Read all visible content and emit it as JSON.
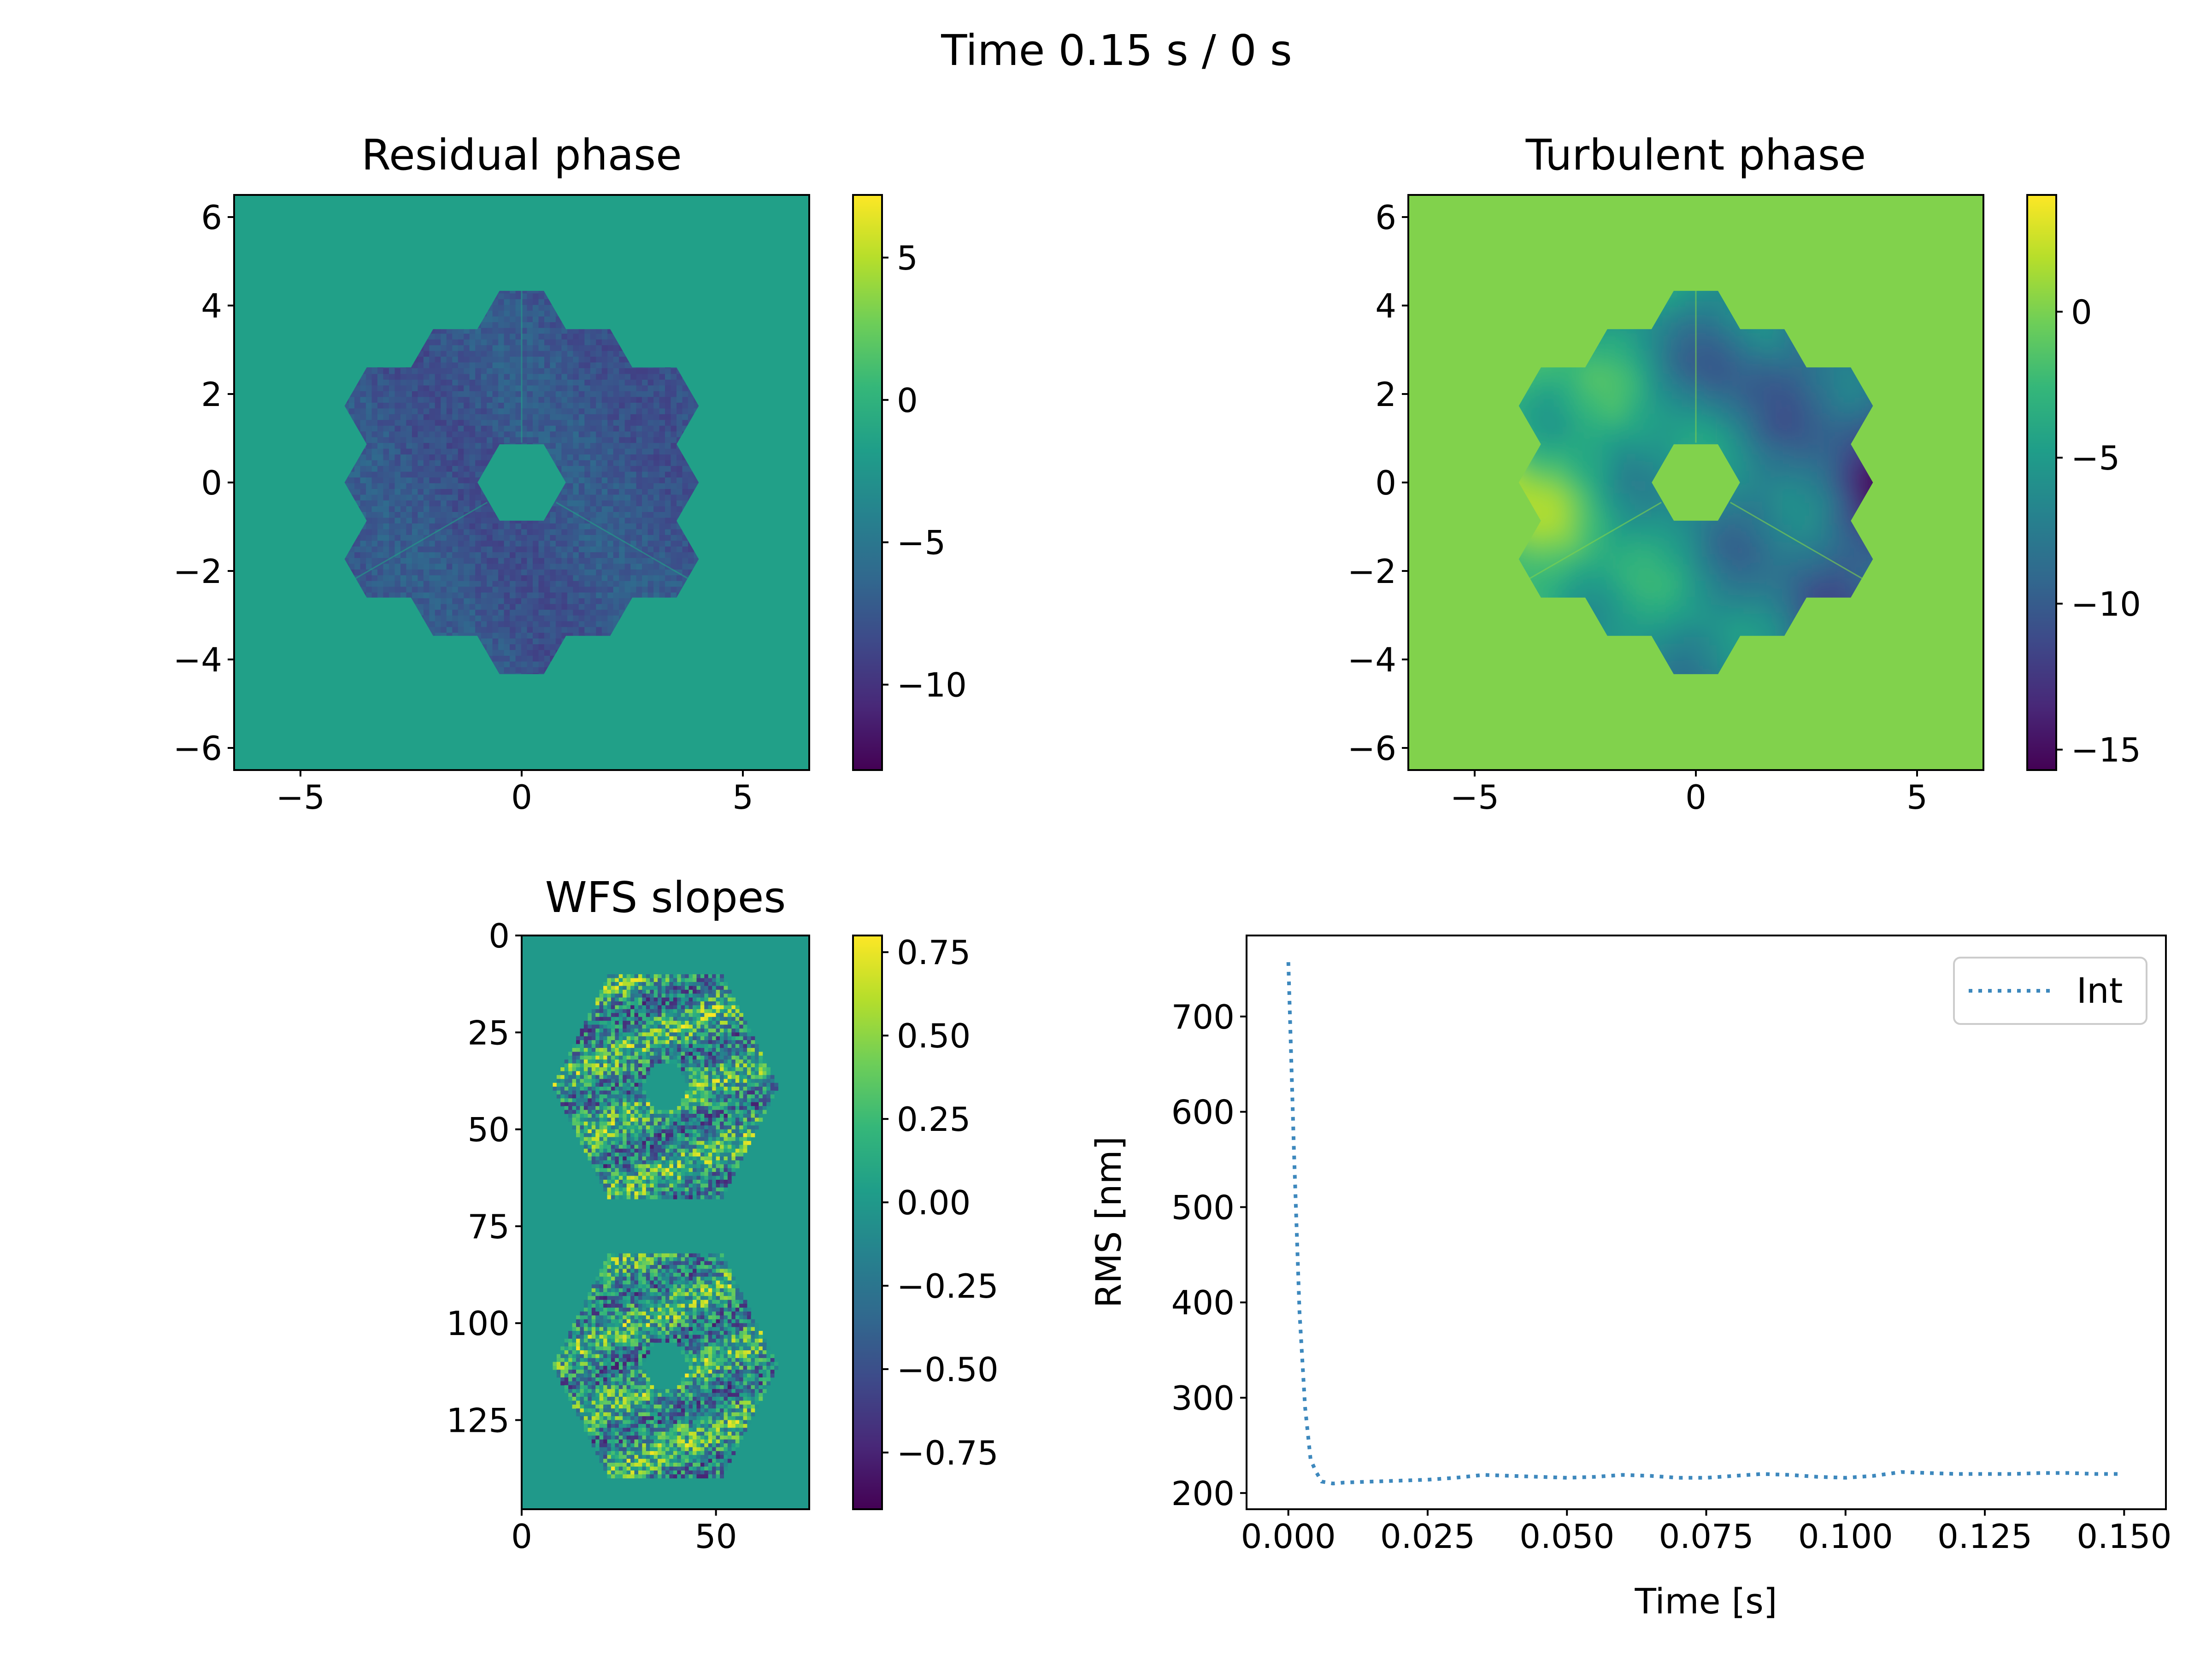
{
  "figure": {
    "title": "Time 0.15 s / 0 s"
  },
  "chart_data": [
    {
      "type": "heatmap",
      "title": "Residual phase",
      "xlim": [
        -6.5,
        6.5
      ],
      "ylim": [
        -6.5,
        6.5
      ],
      "xticks": [
        -5,
        0,
        5
      ],
      "xtick_labels": [
        "−5",
        "0",
        "5"
      ],
      "yticks": [
        6,
        4,
        2,
        0,
        -2,
        -4,
        -6
      ],
      "ytick_labels": [
        "6",
        "4",
        "2",
        "0",
        "−2",
        "−4",
        "−6"
      ],
      "colormap": "viridis",
      "background_value": -1.6,
      "pupil_mean_value": -7.6,
      "colorbar": {
        "range": [
          -13,
          7.2
        ],
        "ticks": [
          5,
          0,
          -5,
          -10
        ],
        "tick_labels": [
          "5",
          "0",
          "−5",
          "−10"
        ]
      }
    },
    {
      "type": "heatmap",
      "title": "Turbulent phase",
      "xlim": [
        -6.5,
        6.5
      ],
      "ylim": [
        -6.5,
        6.5
      ],
      "xticks": [
        -5,
        0,
        5
      ],
      "xtick_labels": [
        "−5",
        "0",
        "5"
      ],
      "yticks": [
        6,
        4,
        2,
        0,
        -2,
        -4,
        -6
      ],
      "ytick_labels": [
        "6",
        "4",
        "2",
        "0",
        "−2",
        "−4",
        "−6"
      ],
      "colormap": "viridis",
      "background_value": 0.2,
      "pupil_range": [
        -15.3,
        3.5
      ],
      "colorbar": {
        "range": [
          -15.7,
          4.0
        ],
        "ticks": [
          0,
          -5,
          -10,
          -15
        ],
        "tick_labels": [
          "0",
          "−5",
          "−10",
          "−15"
        ]
      }
    },
    {
      "type": "heatmap",
      "title": "WFS slopes",
      "xlim": [
        0,
        74
      ],
      "ylim": [
        148,
        0
      ],
      "xticks": [
        0,
        50
      ],
      "xtick_labels": [
        "0",
        "50"
      ],
      "yticks": [
        0,
        25,
        50,
        75,
        100,
        125
      ],
      "ytick_labels": [
        "0",
        "25",
        "50",
        "75",
        "100",
        "125"
      ],
      "colormap": "viridis",
      "background_value": 0.0,
      "slope_range": [
        -0.9,
        0.8
      ],
      "colorbar": {
        "range": [
          -0.92,
          0.8
        ],
        "ticks": [
          0.75,
          0.5,
          0.25,
          0.0,
          -0.25,
          -0.5,
          -0.75
        ],
        "tick_labels": [
          "0.75",
          "0.50",
          "0.25",
          "0.00",
          "−0.25",
          "−0.50",
          "−0.75"
        ]
      }
    },
    {
      "type": "line",
      "title": "",
      "xlabel": "Time [s]",
      "ylabel": "RMS [nm]",
      "xlim": [
        -0.0075,
        0.1575
      ],
      "ylim": [
        183,
        785
      ],
      "xticks": [
        0.0,
        0.025,
        0.05,
        0.075,
        0.1,
        0.125,
        0.15
      ],
      "xtick_labels": [
        "0.000",
        "0.025",
        "0.050",
        "0.075",
        "0.100",
        "0.125",
        "0.150"
      ],
      "yticks": [
        200,
        300,
        400,
        500,
        600,
        700
      ],
      "ytick_labels": [
        "200",
        "300",
        "400",
        "500",
        "600",
        "700"
      ],
      "grid": false,
      "legend_position": "top-right",
      "series": [
        {
          "name": "Int",
          "color": "#3d88bd",
          "line_style": "dotted",
          "x": [
            0.0,
            0.001,
            0.002,
            0.003,
            0.004,
            0.005,
            0.006,
            0.008,
            0.01,
            0.015,
            0.02,
            0.025,
            0.03,
            0.035,
            0.04,
            0.045,
            0.05,
            0.055,
            0.06,
            0.065,
            0.07,
            0.075,
            0.08,
            0.085,
            0.09,
            0.095,
            0.1,
            0.105,
            0.11,
            0.115,
            0.12,
            0.125,
            0.13,
            0.135,
            0.14,
            0.145,
            0.149
          ],
          "y": [
            757,
            560,
            390,
            290,
            235,
            222,
            212,
            210,
            211,
            212,
            213,
            214,
            216,
            219,
            218,
            217,
            216,
            217,
            219,
            218,
            216,
            216,
            218,
            220,
            219,
            217,
            216,
            218,
            222,
            221,
            220,
            220,
            220,
            221,
            221,
            220,
            220
          ]
        }
      ]
    }
  ]
}
